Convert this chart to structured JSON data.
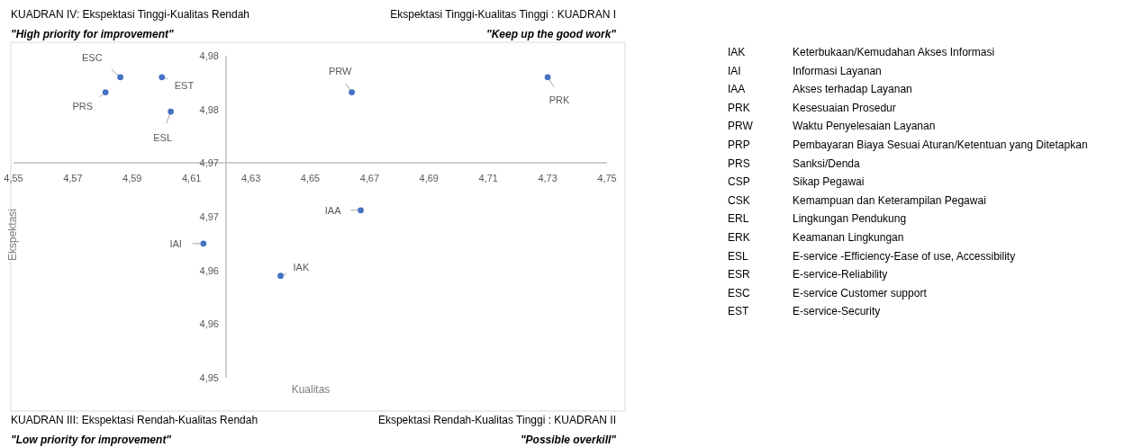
{
  "chart_data": [
    {
      "type": "scatter",
      "xlabel": "Kualitas",
      "ylabel": "Ekspektasi",
      "marker": "circle",
      "grid": false,
      "xlim": [
        4.55,
        4.75
      ],
      "ylim": [
        4.95,
        4.98
      ],
      "xticks": [
        {
          "value": 4.55,
          "label": "4,55"
        },
        {
          "value": 4.57,
          "label": "4,57"
        },
        {
          "value": 4.59,
          "label": "4,59"
        },
        {
          "value": 4.61,
          "label": "4,61"
        },
        {
          "value": 4.63,
          "label": "4,63"
        },
        {
          "value": 4.65,
          "label": "4,65"
        },
        {
          "value": 4.67,
          "label": "4,67"
        },
        {
          "value": 4.69,
          "label": "4,69"
        },
        {
          "value": 4.71,
          "label": "4,71"
        },
        {
          "value": 4.73,
          "label": "4,73"
        },
        {
          "value": 4.75,
          "label": "4,75"
        }
      ],
      "yticks": [
        {
          "value": 4.95,
          "label": "4,95"
        },
        {
          "value": 4.955,
          "label": "4,96"
        },
        {
          "value": 4.96,
          "label": "4,96"
        },
        {
          "value": 4.965,
          "label": "4,97"
        },
        {
          "value": 4.97,
          "label": "4,97"
        },
        {
          "value": 4.975,
          "label": "4,98"
        },
        {
          "value": 4.98,
          "label": "4,98"
        }
      ],
      "series": [
        {
          "name": "ESC",
          "color": "#4472c4",
          "x": [
            4.586
          ],
          "values": [
            4.978
          ]
        },
        {
          "name": "EST",
          "color": "#4472c4",
          "x": [
            4.6
          ],
          "values": [
            4.978
          ]
        },
        {
          "name": "PRS",
          "color": "#4472c4",
          "x": [
            4.581
          ],
          "values": [
            4.9766
          ]
        },
        {
          "name": "ESL",
          "color": "#4472c4",
          "x": [
            4.603
          ],
          "values": [
            4.9748
          ]
        },
        {
          "name": "PRW",
          "color": "#4472c4",
          "x": [
            4.664
          ],
          "values": [
            4.9766
          ]
        },
        {
          "name": "PRK",
          "color": "#4472c4",
          "x": [
            4.73
          ],
          "values": [
            4.978
          ]
        },
        {
          "name": "IAA",
          "color": "#4472c4",
          "x": [
            4.667
          ],
          "values": [
            4.9656
          ]
        },
        {
          "name": "IAI",
          "color": "#4472c4",
          "x": [
            4.614
          ],
          "values": [
            4.9625
          ]
        },
        {
          "name": "IAK",
          "color": "#4472c4",
          "x": [
            4.64
          ],
          "values": [
            4.9595
          ]
        }
      ],
      "annotations": [
        "KUADRAN IV: Ekspektasi Tinggi-Kualitas Rendah",
        "\"High priority for improvement\"",
        "Ekspektasi Tinggi-Kualitas Tinggi : KUADRAN I",
        "\"Keep up the good work\"",
        "KUADRAN III: Ekspektasi Rendah-Kualitas Rendah",
        "\"Low priority for improvement\"",
        "Ekspektasi Rendah-Kualitas Tinggi : KUADRAN II",
        "\"Possible overkill\""
      ]
    },
    {
      "type": "other",
      "annotations": [
        "IAK Keterbukaan/Kemudahan Akses Informasi",
        "IAI Informasi Layanan",
        "IAA Akses terhadap Layanan",
        "PRK Kesesuaian Prosedur",
        "PRW Waktu Penyelesaian Layanan",
        "PRP Pembayaran Biaya Sesuai Aturan/Ketentuan yang Ditetapkan",
        "PRS Sanksi/Denda",
        "CSP Sikap Pegawai",
        "CSK Kemampuan dan Keterampilan Pegawai",
        "ERL Lingkungan Pendukung",
        "ERK Keamanan Lingkungan",
        "ESL E-service -Efficiency-Ease of use, Accessibility",
        "ESR E-service-Reliability",
        "ESC E-service Customer support",
        "EST E-service-Security"
      ]
    }
  ]
}
